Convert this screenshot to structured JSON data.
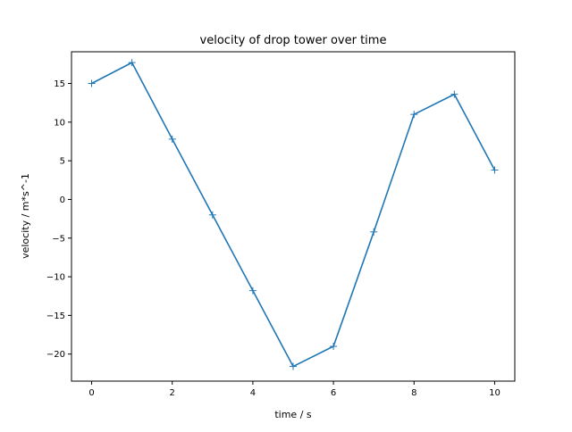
{
  "chart_data": {
    "type": "line",
    "title": "velocity of drop tower over time",
    "xlabel": "time / s",
    "ylabel": "velocity / m*s^-1",
    "xlim": [
      -0.5,
      10.5
    ],
    "ylim": [
      -23.5,
      19.1
    ],
    "x_ticks": [
      0,
      2,
      4,
      6,
      8,
      10
    ],
    "y_ticks": [
      15,
      10,
      5,
      0,
      -5,
      -10,
      -15,
      -20
    ],
    "x_tick_labels": [
      "0",
      "2",
      "4",
      "6",
      "8",
      "10"
    ],
    "y_tick_labels": [
      "15",
      "10",
      "5",
      "0",
      "−5",
      "−10",
      "−15",
      "−20"
    ],
    "grid": false,
    "marker": "+",
    "series": [
      {
        "color": "#1f77b4",
        "x": [
          0,
          1,
          2,
          3,
          4,
          5,
          6,
          7,
          8,
          9,
          10
        ],
        "y": [
          15.0,
          17.7,
          7.8,
          -2.0,
          -11.8,
          -21.6,
          -19.0,
          -4.2,
          11.0,
          13.6,
          3.8
        ]
      }
    ]
  }
}
